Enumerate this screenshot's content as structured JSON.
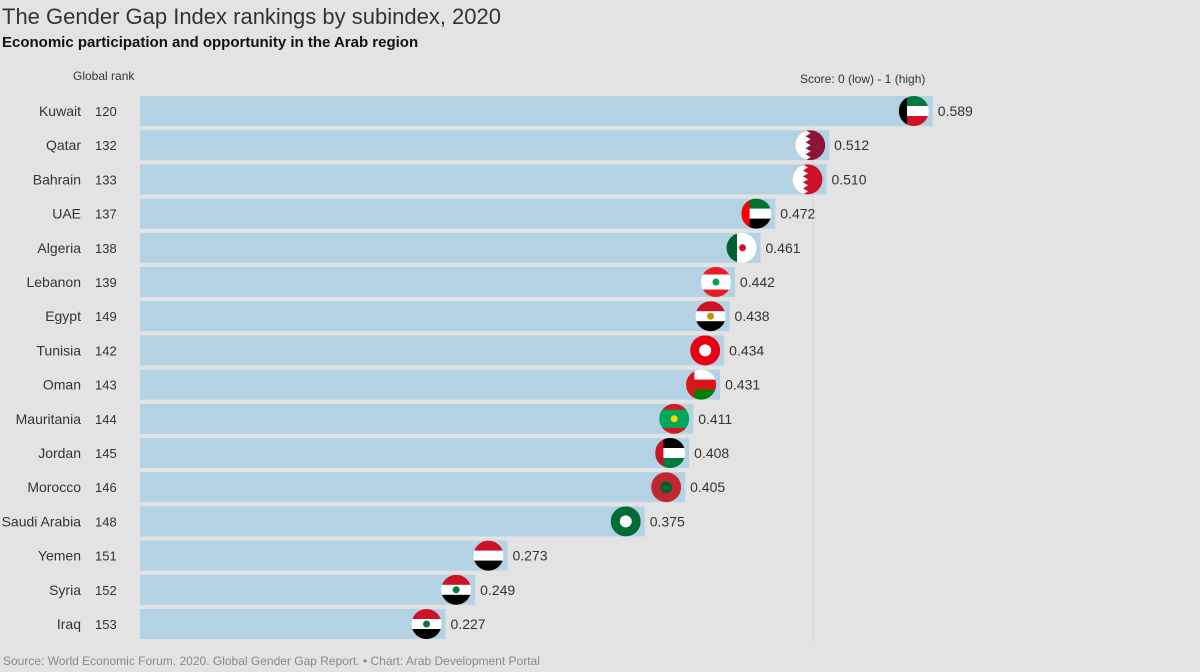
{
  "chart_data": {
    "type": "bar",
    "title": "The Gender Gap Index rankings by subindex, 2020",
    "subtitle": "Economic participation and opportunity in the Arab region",
    "rank_header": "Global rank",
    "score_header": "Score: 0 (low) - 1 (high)",
    "xlim": [
      0,
      1
    ],
    "gridline": 0.5,
    "bar_color": "#b3d2e3",
    "rows": [
      {
        "country": "Kuwait",
        "rank": "120",
        "value": 0.589,
        "label": "0.589",
        "flag": {
          "h": [
            "#007a3d",
            "#ffffff",
            "#ce1126"
          ],
          "hoist": "#000000"
        }
      },
      {
        "country": "Qatar",
        "rank": "132",
        "value": 0.512,
        "label": "0.512",
        "flag": {
          "v": [
            "#ffffff",
            "#8a1538"
          ],
          "zig": true
        }
      },
      {
        "country": "Bahrain",
        "rank": "133",
        "value": 0.51,
        "label": "0.510",
        "flag": {
          "v": [
            "#ffffff",
            "#ce1126"
          ],
          "zig": true
        }
      },
      {
        "country": "UAE",
        "rank": "137",
        "value": 0.472,
        "label": "0.472",
        "flag": {
          "h": [
            "#00732f",
            "#ffffff",
            "#000000"
          ],
          "hoist": "#ff0000"
        }
      },
      {
        "country": "Algeria",
        "rank": "138",
        "value": 0.461,
        "label": "0.461",
        "flag": {
          "v": [
            "#006233",
            "#ffffff"
          ],
          "mark": "#d21034"
        }
      },
      {
        "country": "Lebanon",
        "rank": "139",
        "value": 0.442,
        "label": "0.442",
        "flag": {
          "h": [
            "#ed1c24",
            "#ffffff",
            "#ffffff",
            "#ed1c24"
          ],
          "mark": "#00a651"
        }
      },
      {
        "country": "Egypt",
        "rank": "149",
        "value": 0.438,
        "label": "0.438",
        "flag": {
          "h": [
            "#ce1126",
            "#ffffff",
            "#000000"
          ],
          "mark": "#c09300"
        }
      },
      {
        "country": "Tunisia",
        "rank": "142",
        "value": 0.434,
        "label": "0.434",
        "flag": {
          "h": [
            "#e70013"
          ],
          "mark": "#ffffff"
        }
      },
      {
        "country": "Oman",
        "rank": "143",
        "value": 0.431,
        "label": "0.431",
        "flag": {
          "h": [
            "#ffffff",
            "#db161b",
            "#008000"
          ],
          "hoist": "#db161b"
        }
      },
      {
        "country": "Mauritania",
        "rank": "144",
        "value": 0.411,
        "label": "0.411",
        "flag": {
          "h": [
            "#d01c1f",
            "#00a95c",
            "#00a95c",
            "#00a95c",
            "#d01c1f"
          ],
          "mark": "#ffd700"
        }
      },
      {
        "country": "Jordan",
        "rank": "145",
        "value": 0.408,
        "label": "0.408",
        "flag": {
          "h": [
            "#000000",
            "#ffffff",
            "#007a3d"
          ],
          "hoist": "#ce1126"
        }
      },
      {
        "country": "Morocco",
        "rank": "146",
        "value": 0.405,
        "label": "0.405",
        "flag": {
          "h": [
            "#c1272d"
          ],
          "mark": "#006233"
        }
      },
      {
        "country": "Saudi Arabia",
        "rank": "148",
        "value": 0.375,
        "label": "0.375",
        "flag": {
          "h": [
            "#006c35"
          ],
          "mark": "#ffffff"
        }
      },
      {
        "country": "Yemen",
        "rank": "151",
        "value": 0.273,
        "label": "0.273",
        "flag": {
          "h": [
            "#ce1126",
            "#ffffff",
            "#000000"
          ]
        }
      },
      {
        "country": "Syria",
        "rank": "152",
        "value": 0.249,
        "label": "0.249",
        "flag": {
          "h": [
            "#ce1126",
            "#ffffff",
            "#000000"
          ],
          "mark": "#007a3d"
        }
      },
      {
        "country": "Iraq",
        "rank": "153",
        "value": 0.227,
        "label": "0.227",
        "flag": {
          "h": [
            "#ce1126",
            "#ffffff",
            "#000000"
          ],
          "mark": "#007a3d"
        }
      }
    ],
    "source": "Source: World Economic Forum. 2020. Global Gender Gap Report. • Chart: Arab Development Portal"
  }
}
